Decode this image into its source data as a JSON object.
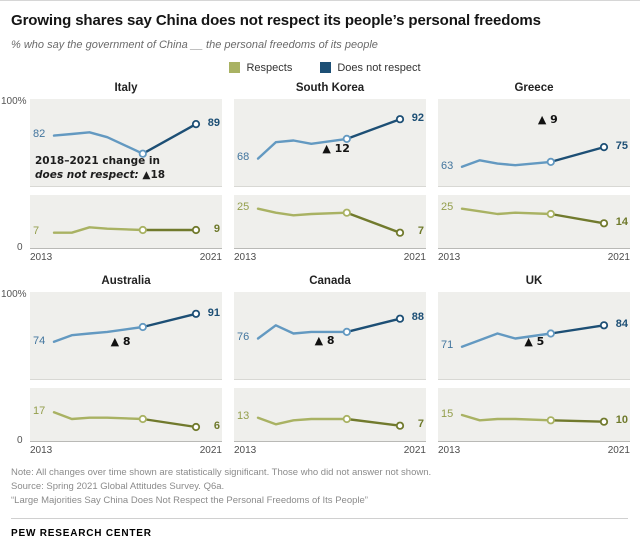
{
  "header": {
    "title": "Growing shares say China does not respect its people’s personal freedoms",
    "subtitle": "% who say the government of China __ the personal freedoms of its people"
  },
  "legend": [
    {
      "label": "Respects",
      "color": "#a9b263"
    },
    {
      "label": "Does not respect",
      "color": "#1d4f75"
    }
  ],
  "colors": {
    "respects_light": "#a9b263",
    "respects_dark": "#717a2d",
    "dnr_light": "#6399c1",
    "dnr_dark": "#1d4f75",
    "dnr_label_start": "#42759e",
    "dnr_label_end": "#1d4f75",
    "respects_label_start": "#939e4b",
    "respects_label_end": "#6f7a2c",
    "plot_bg": "#efefec",
    "marker_fill": "#ffffff"
  },
  "axis": {
    "y_top_label": "100%",
    "y_bottom_label": "0",
    "x_start": "2013",
    "x_end": "2021"
  },
  "chart_data": {
    "type": "line",
    "x_range": [
      2013,
      2021
    ],
    "upper_domain": [
      55,
      100
    ],
    "lower_domain": [
      0,
      30
    ],
    "grid": false,
    "legend_position": "top-center",
    "panels": [
      {
        "country": "Italy",
        "does_not_respect": {
          "points": [
            [
              2013,
              82
            ],
            [
              2014,
              83
            ],
            [
              2015,
              84
            ],
            [
              2016,
              81
            ],
            [
              2018,
              71
            ],
            [
              2021,
              89
            ]
          ],
          "start_label": "82",
          "end_label": "89"
        },
        "respects": {
          "points": [
            [
              2013,
              7
            ],
            [
              2014,
              7
            ],
            [
              2015,
              11
            ],
            [
              2016,
              10
            ],
            [
              2018,
              9
            ],
            [
              2021,
              9
            ]
          ],
          "start_label": "7",
          "end_label": "9"
        },
        "annotation": {
          "line1": "2018–2021 change in",
          "line2_italic": "does not respect:",
          "line2_value": " ▲18"
        }
      },
      {
        "country": "South Korea",
        "does_not_respect": {
          "points": [
            [
              2013,
              68
            ],
            [
              2014,
              78
            ],
            [
              2015,
              79
            ],
            [
              2016,
              77
            ],
            [
              2018,
              80
            ],
            [
              2021,
              92
            ]
          ],
          "start_label": "68",
          "end_label": "92"
        },
        "respects": {
          "points": [
            [
              2013,
              25
            ],
            [
              2014,
              22
            ],
            [
              2015,
              20
            ],
            [
              2016,
              21
            ],
            [
              2018,
              22
            ],
            [
              2021,
              7
            ]
          ],
          "start_label": "25",
          "end_label": "7"
        },
        "delta": {
          "text": "▲ 12",
          "x": 0.46,
          "y": 0.5
        }
      },
      {
        "country": "Greece",
        "does_not_respect": {
          "points": [
            [
              2013,
              63
            ],
            [
              2014,
              67
            ],
            [
              2015,
              65
            ],
            [
              2016,
              64
            ],
            [
              2018,
              66
            ],
            [
              2021,
              75
            ]
          ],
          "start_label": "63",
          "end_label": "75"
        },
        "respects": {
          "points": [
            [
              2013,
              25
            ],
            [
              2014,
              23
            ],
            [
              2015,
              21
            ],
            [
              2016,
              22
            ],
            [
              2018,
              21
            ],
            [
              2021,
              14
            ]
          ],
          "start_label": "25",
          "end_label": "14"
        },
        "delta": {
          "text": "▲ 9",
          "x": 0.52,
          "y": 0.16
        }
      },
      {
        "country": "Australia",
        "does_not_respect": {
          "points": [
            [
              2013,
              74
            ],
            [
              2014,
              78
            ],
            [
              2015,
              79
            ],
            [
              2016,
              80
            ],
            [
              2018,
              83
            ],
            [
              2021,
              91
            ]
          ],
          "start_label": "74",
          "end_label": "91"
        },
        "respects": {
          "points": [
            [
              2013,
              17
            ],
            [
              2014,
              12
            ],
            [
              2015,
              13
            ],
            [
              2016,
              13
            ],
            [
              2018,
              12
            ],
            [
              2021,
              6
            ]
          ],
          "start_label": "17",
          "end_label": "6"
        },
        "delta": {
          "text": "▲ 8",
          "x": 0.42,
          "y": 0.5
        }
      },
      {
        "country": "Canada",
        "does_not_respect": {
          "points": [
            [
              2013,
              76
            ],
            [
              2014,
              84
            ],
            [
              2015,
              79
            ],
            [
              2016,
              80
            ],
            [
              2018,
              80
            ],
            [
              2021,
              88
            ]
          ],
          "start_label": "76",
          "end_label": "88"
        },
        "respects": {
          "points": [
            [
              2013,
              13
            ],
            [
              2014,
              8
            ],
            [
              2015,
              11
            ],
            [
              2016,
              12
            ],
            [
              2018,
              12
            ],
            [
              2021,
              7
            ]
          ],
          "start_label": "13",
          "end_label": "7"
        },
        "delta": {
          "text": "▲ 8",
          "x": 0.42,
          "y": 0.48
        }
      },
      {
        "country": "UK",
        "does_not_respect": {
          "points": [
            [
              2013,
              71
            ],
            [
              2014,
              75
            ],
            [
              2015,
              79
            ],
            [
              2016,
              76
            ],
            [
              2018,
              79
            ],
            [
              2021,
              84
            ]
          ],
          "start_label": "71",
          "end_label": "84"
        },
        "respects": {
          "points": [
            [
              2013,
              15
            ],
            [
              2014,
              11
            ],
            [
              2015,
              12
            ],
            [
              2016,
              12
            ],
            [
              2018,
              11
            ],
            [
              2021,
              10
            ]
          ],
          "start_label": "15",
          "end_label": "10"
        },
        "delta": {
          "text": "▲ 5",
          "x": 0.45,
          "y": 0.5
        }
      }
    ]
  },
  "footer": {
    "note": "Note: All changes over time shown are statistically significant. Those who did not answer not shown.",
    "source": "Source: Spring 2021 Global Attitudes Survey. Q6a.",
    "report": "“Large Majorities Say China Does Not Respect the Personal Freedoms of Its People”",
    "org": "PEW RESEARCH CENTER"
  }
}
